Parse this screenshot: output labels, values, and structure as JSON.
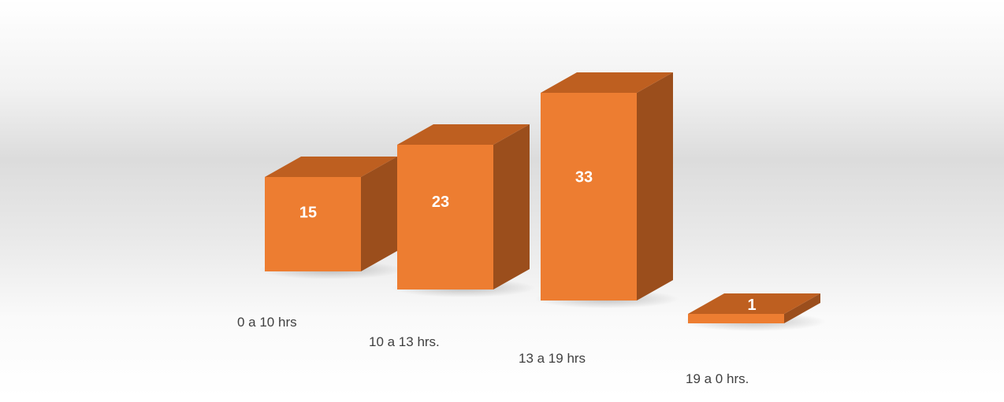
{
  "chart_data": {
    "type": "bar",
    "style": "3d-column",
    "categories": [
      "0 a 10 hrs",
      "10 a 13 hrs.",
      "13 a 19 hrs",
      "19 a 0 hrs."
    ],
    "values": [
      15,
      23,
      33,
      1
    ],
    "value_labels": [
      "15",
      "23",
      "33",
      "1"
    ],
    "title": "",
    "xlabel": "",
    "ylabel": "",
    "ylim": [
      0,
      35
    ],
    "grid": false,
    "legend": "none",
    "data_labels": true,
    "colors": {
      "front": "#ED7D31",
      "top": "#BE5F20",
      "side": "#9B4E1C",
      "labels": "#FFFFFF",
      "category_text": "#404040"
    }
  }
}
